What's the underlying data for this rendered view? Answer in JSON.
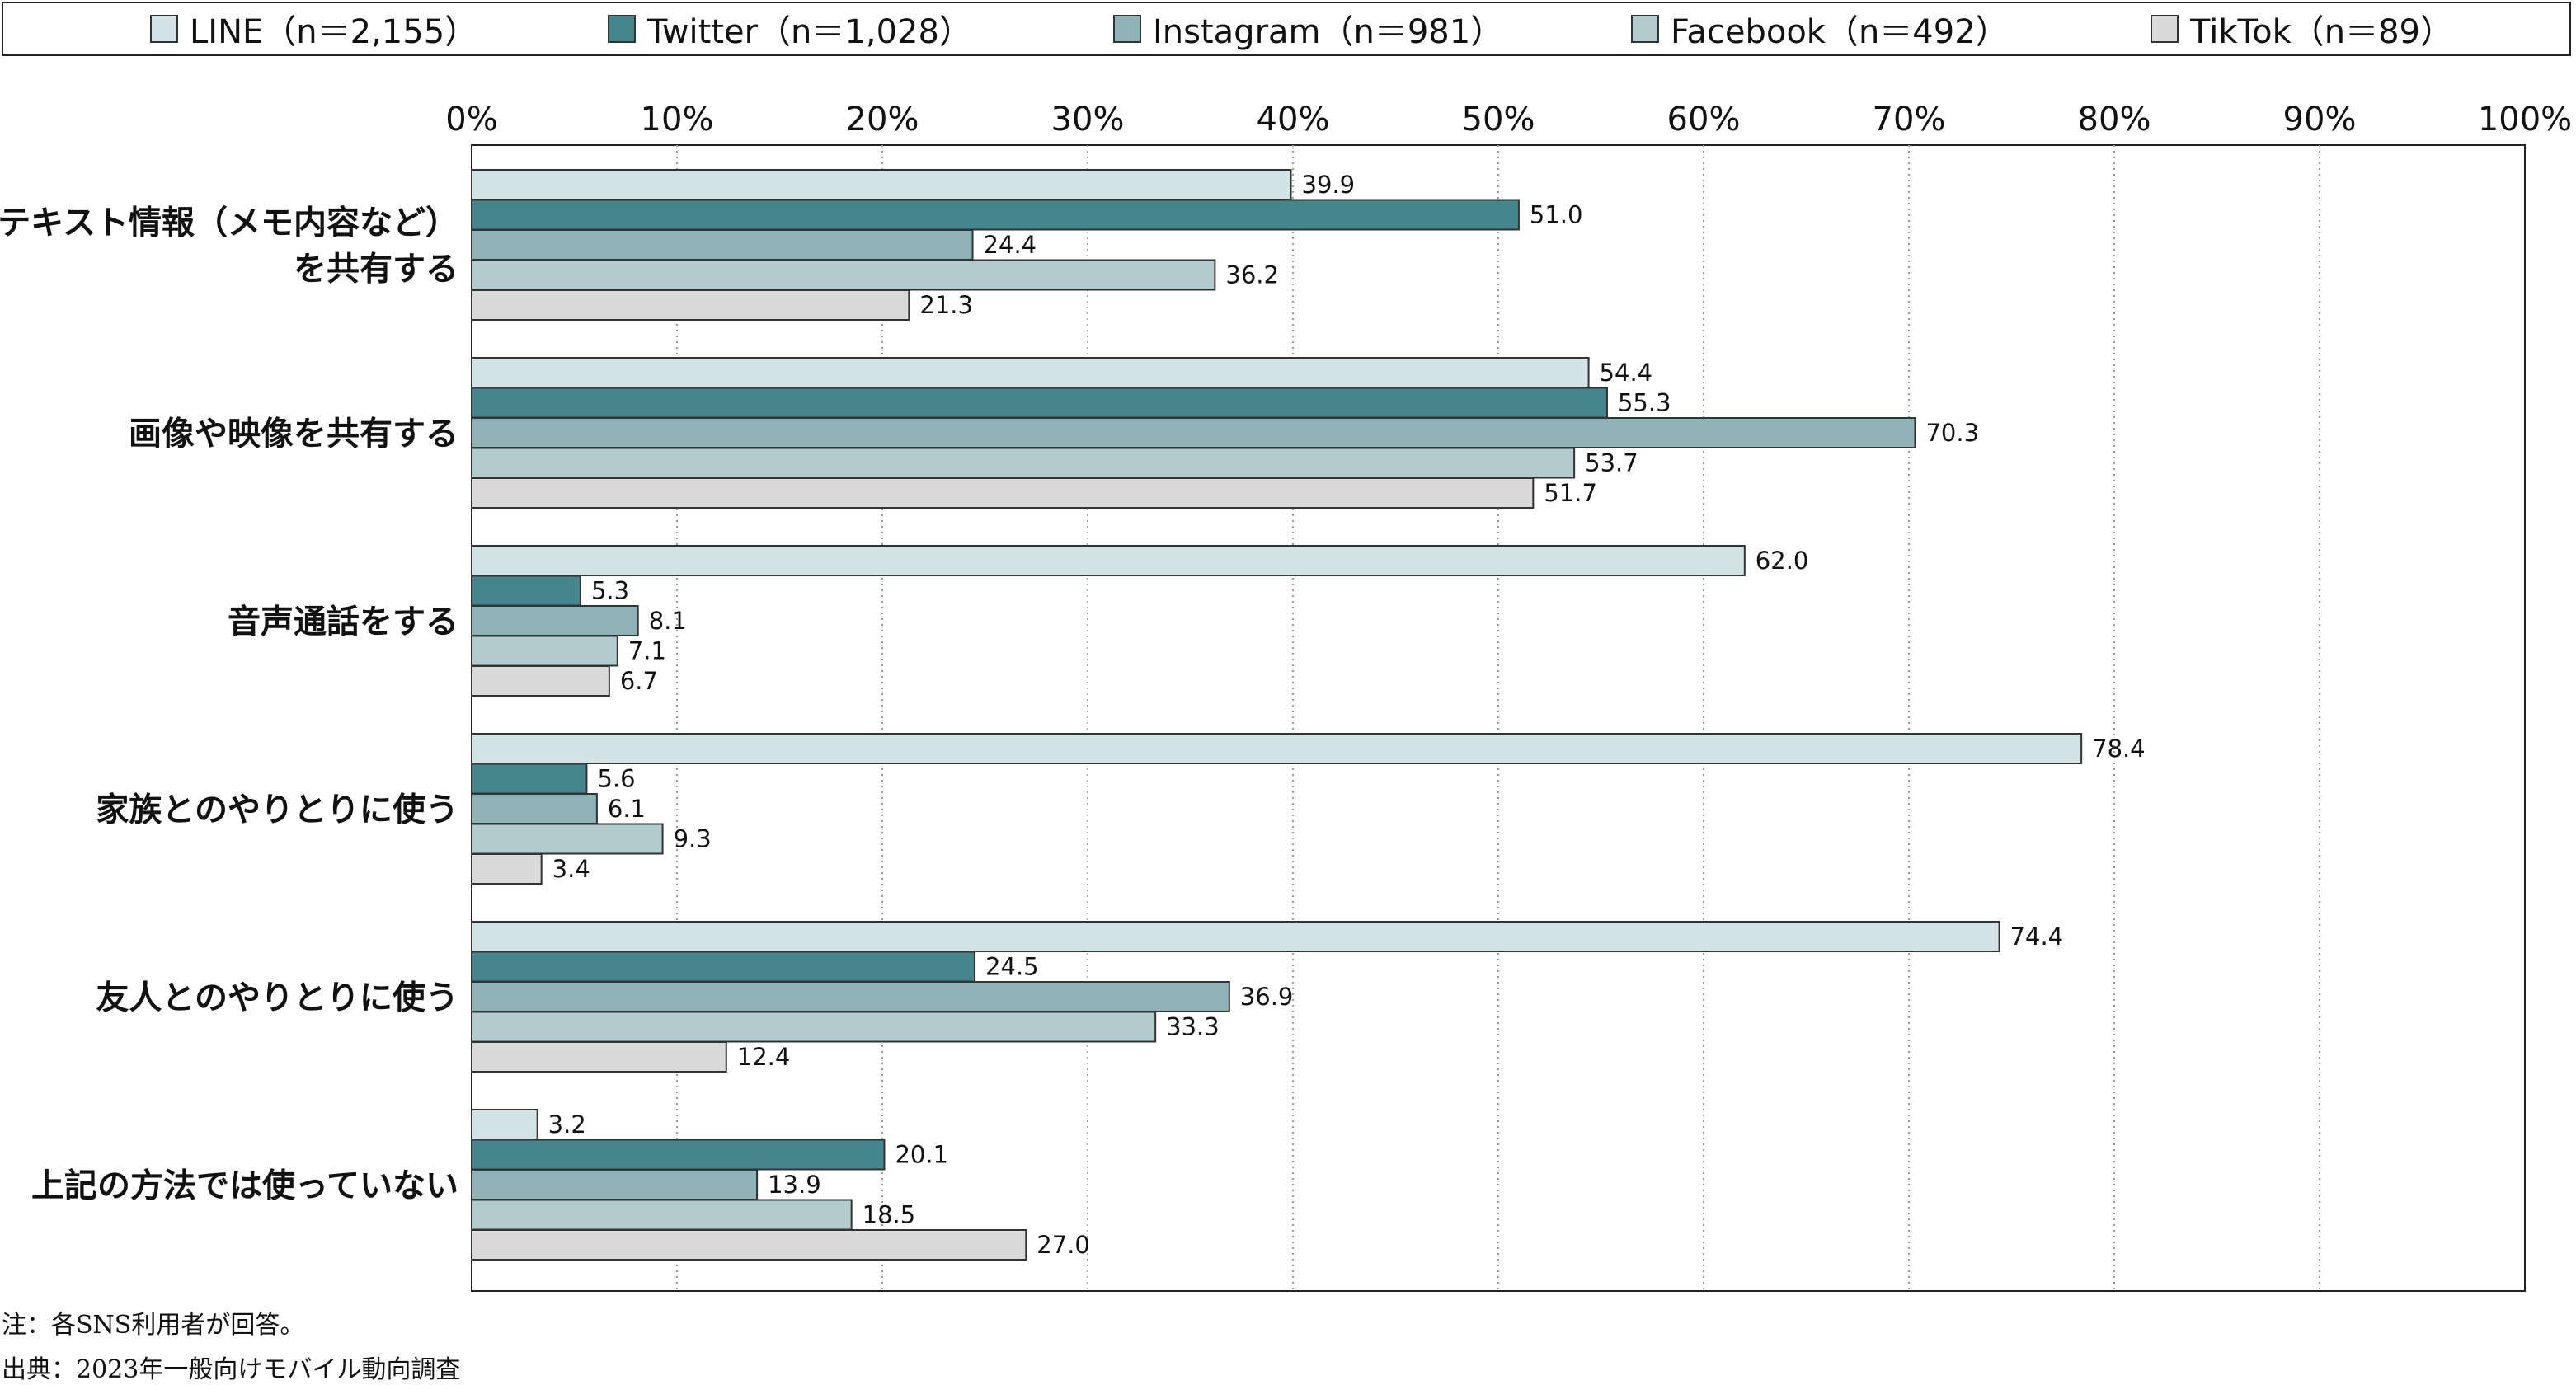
{
  "chart_data": {
    "type": "bar",
    "orientation": "horizontal",
    "categories": [
      [
        "テキスト情報（メモ内容など）",
        "を共有する"
      ],
      [
        "画像や映像を共有する"
      ],
      [
        "音声通話をする"
      ],
      [
        "家族とのやりとりに使う"
      ],
      [
        "友人とのやりとりに使う"
      ],
      [
        "上記の方法では使っていない"
      ]
    ],
    "series": [
      {
        "name": "LINE（n＝2,155）",
        "color": "#d4e3e5",
        "values": [
          39.9,
          54.4,
          62.0,
          78.4,
          74.4,
          3.2
        ],
        "labels": [
          "39.9",
          "54.4",
          "62.0",
          "78.4",
          "74.4",
          "3.2"
        ]
      },
      {
        "name": "Twitter（n＝1,028）",
        "color": "#45868d",
        "values": [
          51.0,
          55.3,
          5.3,
          5.6,
          24.5,
          20.1
        ],
        "labels": [
          "51.0",
          "55.3",
          "5.3",
          "5.6",
          "24.5",
          "20.1"
        ]
      },
      {
        "name": "Instagram（n＝981）",
        "color": "#8fb2b6",
        "values": [
          24.4,
          70.3,
          8.1,
          6.1,
          36.9,
          13.9
        ],
        "labels": [
          "24.4",
          "70.3",
          "8.1",
          "6.1",
          "36.9",
          "13.9"
        ]
      },
      {
        "name": "Facebook（n＝492）",
        "color": "#b1cbce",
        "values": [
          36.2,
          53.7,
          7.1,
          9.3,
          33.3,
          18.5
        ],
        "labels": [
          "36.2",
          "53.7",
          "7.1",
          "9.3",
          "33.3",
          "18.5"
        ]
      },
      {
        "name": "TikTok（n＝89）",
        "color": "#dadada",
        "values": [
          21.3,
          51.7,
          6.7,
          3.4,
          12.4,
          27.0
        ],
        "labels": [
          "21.3",
          "51.7",
          "6.7",
          "3.4",
          "12.4",
          "27.0"
        ]
      }
    ],
    "xlim": [
      0,
      100
    ],
    "xticks": [
      "0%",
      "10%",
      "20%",
      "30%",
      "40%",
      "50%",
      "60%",
      "70%",
      "80%",
      "90%",
      "100%"
    ],
    "grid": "vertical-dotted",
    "legend_position": "top"
  },
  "notes": {
    "note": "注：各SNS利用者が回答。",
    "source": "出典：2023年一般向けモバイル動向調査"
  }
}
